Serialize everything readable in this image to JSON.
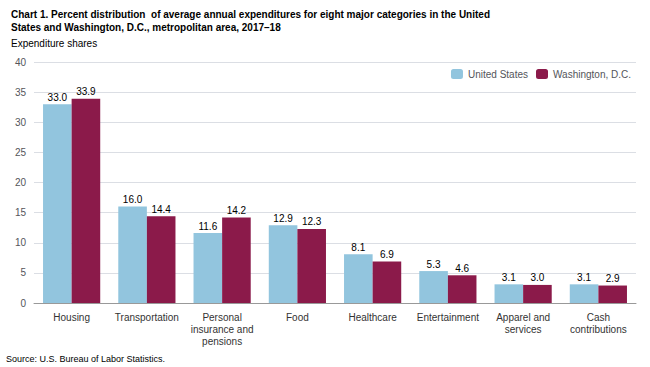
{
  "chart_data": {
    "type": "bar",
    "title": "Chart 1. Percent distribution  of average annual expenditures for eight major categories in the United\nStates and Washington, D.C., metropolitan area, 2017–18",
    "subtitle": "Expenditure shares",
    "annotations": [
      "Source: U.S. Bureau of Labor Statistics."
    ],
    "categories": [
      "Housing",
      "Transportation",
      "Personal\ninsurance and\npensions",
      "Food",
      "Healthcare",
      "Entertainment",
      "Apparel and\nservices",
      "Cash\ncontributions"
    ],
    "series": [
      {
        "name": "United States",
        "color": "#92C5DE",
        "values": [
          33.0,
          16.0,
          11.6,
          12.9,
          8.1,
          5.3,
          3.1,
          3.1
        ],
        "value_labels": [
          "33.0",
          "16.0",
          "11.6",
          "12.9",
          "8.1",
          "5.3",
          "3.1",
          "3.1"
        ]
      },
      {
        "name": "Washington, D.C.",
        "color": "#8B1A4A",
        "values": [
          33.9,
          14.4,
          14.2,
          12.3,
          6.9,
          4.6,
          3.0,
          2.9
        ],
        "value_labels": [
          "33.9",
          "14.4",
          "14.2",
          "12.3",
          "6.9",
          "4.6",
          "3.0",
          "2.9"
        ]
      }
    ],
    "ylim": [
      0,
      40
    ],
    "yticks": [
      0,
      5,
      10,
      15,
      20,
      25,
      30,
      35,
      40
    ],
    "grid": true,
    "legend": "upper right",
    "data_labels": true
  }
}
